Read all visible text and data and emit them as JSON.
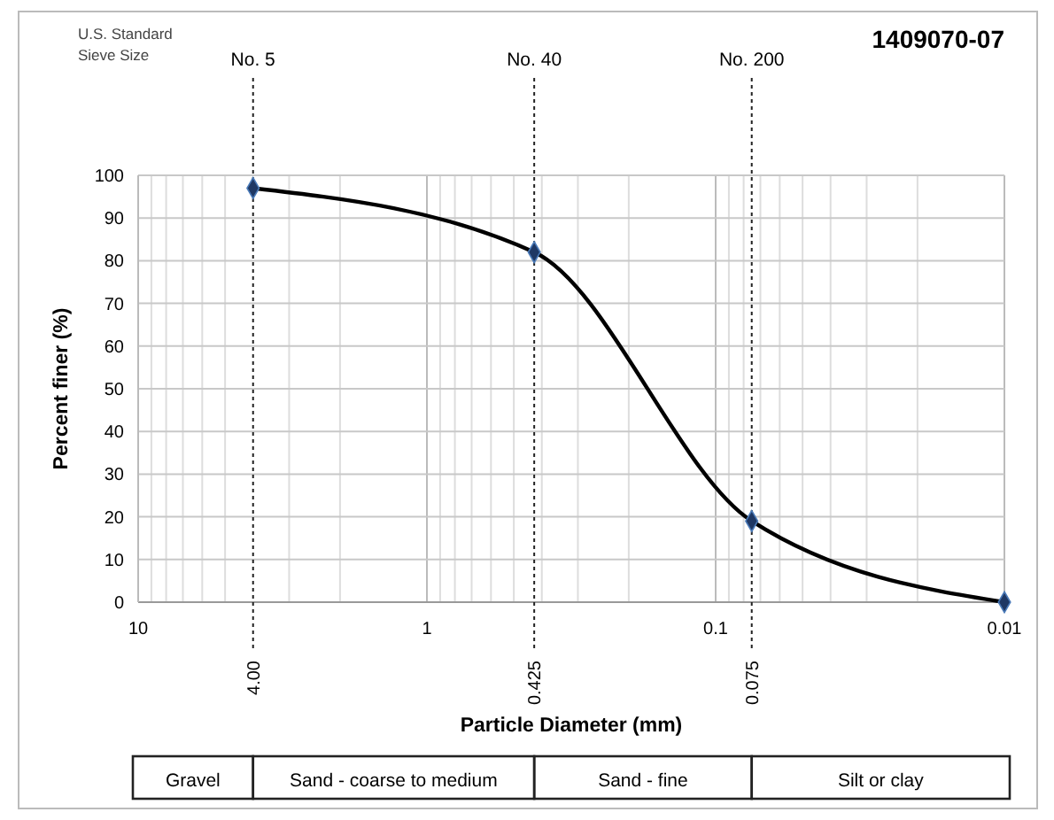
{
  "chart_data": {
    "type": "line",
    "title": "1409070-07",
    "xlabel": "Particle Diameter (mm)",
    "ylabel": "Percent finer (%)",
    "x": [
      4,
      0.425,
      0.075,
      0.01
    ],
    "series": [
      {
        "color": "#000000",
        "values": [
          97,
          82,
          19,
          0
        ]
      }
    ],
    "log": "x",
    "xlim": [
      10,
      0.01
    ],
    "xticks": [
      10,
      1,
      0.1,
      0.01
    ],
    "ylim": [
      0,
      100
    ],
    "yticks": [
      0,
      10,
      20,
      30,
      40,
      50,
      60,
      70,
      80,
      90,
      100
    ],
    "grid": true,
    "marker": "diamond",
    "ref_lines": [
      {
        "axis": "x",
        "value": 4,
        "label": "No. 5",
        "line_style": "dotted"
      },
      {
        "axis": "x",
        "value": 0.425,
        "label": "No. 40",
        "line_style": "dotted"
      },
      {
        "axis": "x",
        "value": 0.075,
        "label": "No. 200",
        "line_style": "dotted"
      }
    ],
    "annotations": [
      "U.S. Standard Sieve Size",
      "4.00",
      "0.425",
      "0.075",
      "Gravel",
      "Sand - coarse to medium",
      "Sand - fine",
      "Silt or clay"
    ]
  }
}
